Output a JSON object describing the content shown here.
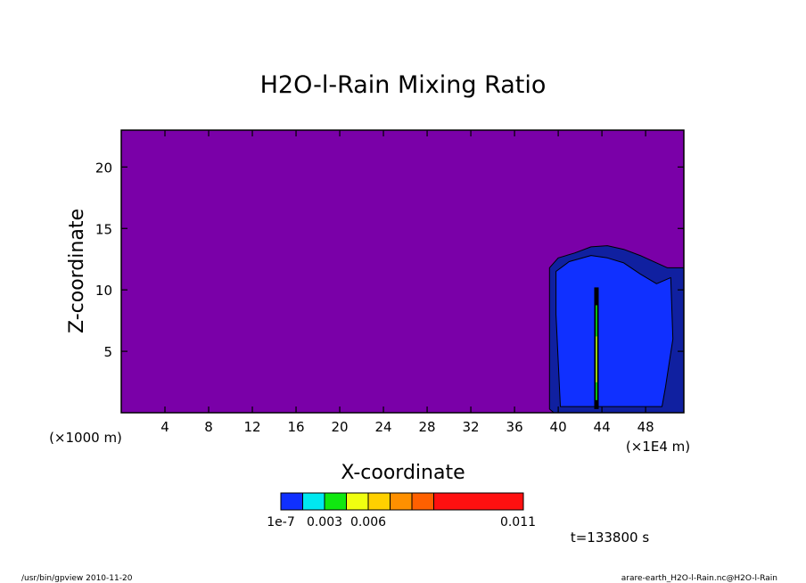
{
  "chart_data": {
    "type": "contour",
    "title": "H2O-l-Rain Mixing Ratio",
    "xlabel": "X-coordinate",
    "ylabel": "Z-coordinate",
    "x_unit": "(×1E4 m)",
    "y_unit": "(×1000 m)",
    "xlim": [
      0,
      51.5
    ],
    "ylim": [
      0,
      23
    ],
    "x_ticks": [
      4,
      8,
      12,
      16,
      20,
      24,
      28,
      32,
      36,
      40,
      44,
      48
    ],
    "x_tick_labels": [
      "4",
      "8",
      "12",
      "16",
      "20",
      "24",
      "28",
      "32",
      "36",
      "40",
      "44",
      "48"
    ],
    "y_ticks": [
      5,
      10,
      15,
      20
    ],
    "y_tick_labels": [
      "5",
      "10",
      "15",
      "20"
    ],
    "background_color": "#7a00a8",
    "levels": [
      1e-07,
      0.0015,
      0.003,
      0.0045,
      0.006,
      0.0075,
      0.009,
      0.011
    ],
    "level_labels": [
      "1e-7",
      "0.003",
      "0.006",
      "0.011"
    ],
    "colorbar_colors": [
      "#1030ff",
      "#00e8f0",
      "#10e810",
      "#f0ff10",
      "#ffd000",
      "#ff9000",
      "#ff6000",
      "#ff1010",
      "#ff7878"
    ],
    "regions": [
      {
        "level": "outer",
        "color": "#1020a0",
        "outline": [
          [
            39.2,
            0.3
          ],
          [
            39.2,
            11.8
          ],
          [
            40,
            12.6
          ],
          [
            41.5,
            13
          ],
          [
            43,
            13.5
          ],
          [
            44.5,
            13.6
          ],
          [
            46,
            13.3
          ],
          [
            47.5,
            12.8
          ],
          [
            49,
            12.2
          ],
          [
            50,
            11.8
          ],
          [
            51.5,
            11.8
          ],
          [
            51.5,
            0
          ],
          [
            39.6,
            0
          ]
        ]
      },
      {
        "level": "1e-7",
        "color": "#1030ff",
        "outline": [
          [
            40.2,
            0.5
          ],
          [
            39.8,
            8
          ],
          [
            39.8,
            11.5
          ],
          [
            41,
            12.3
          ],
          [
            43,
            12.8
          ],
          [
            44.5,
            12.6
          ],
          [
            46,
            12.2
          ],
          [
            47.5,
            11.3
          ],
          [
            49,
            10.5
          ],
          [
            50.3,
            11
          ],
          [
            50.5,
            6
          ],
          [
            49.8,
            2
          ],
          [
            49.5,
            0.5
          ]
        ]
      }
    ],
    "core": {
      "x": 43.5,
      "z_bottom": 0.3,
      "z_top": 10.2,
      "colors": [
        "#10e810",
        "#f0ff10"
      ]
    },
    "time_label": "t=133800 s",
    "footer_left": "/usr/bin/gpview  2010-11-20",
    "footer_right": "arare-earth_H2O-l-Rain.nc@H2O-l-Rain"
  }
}
